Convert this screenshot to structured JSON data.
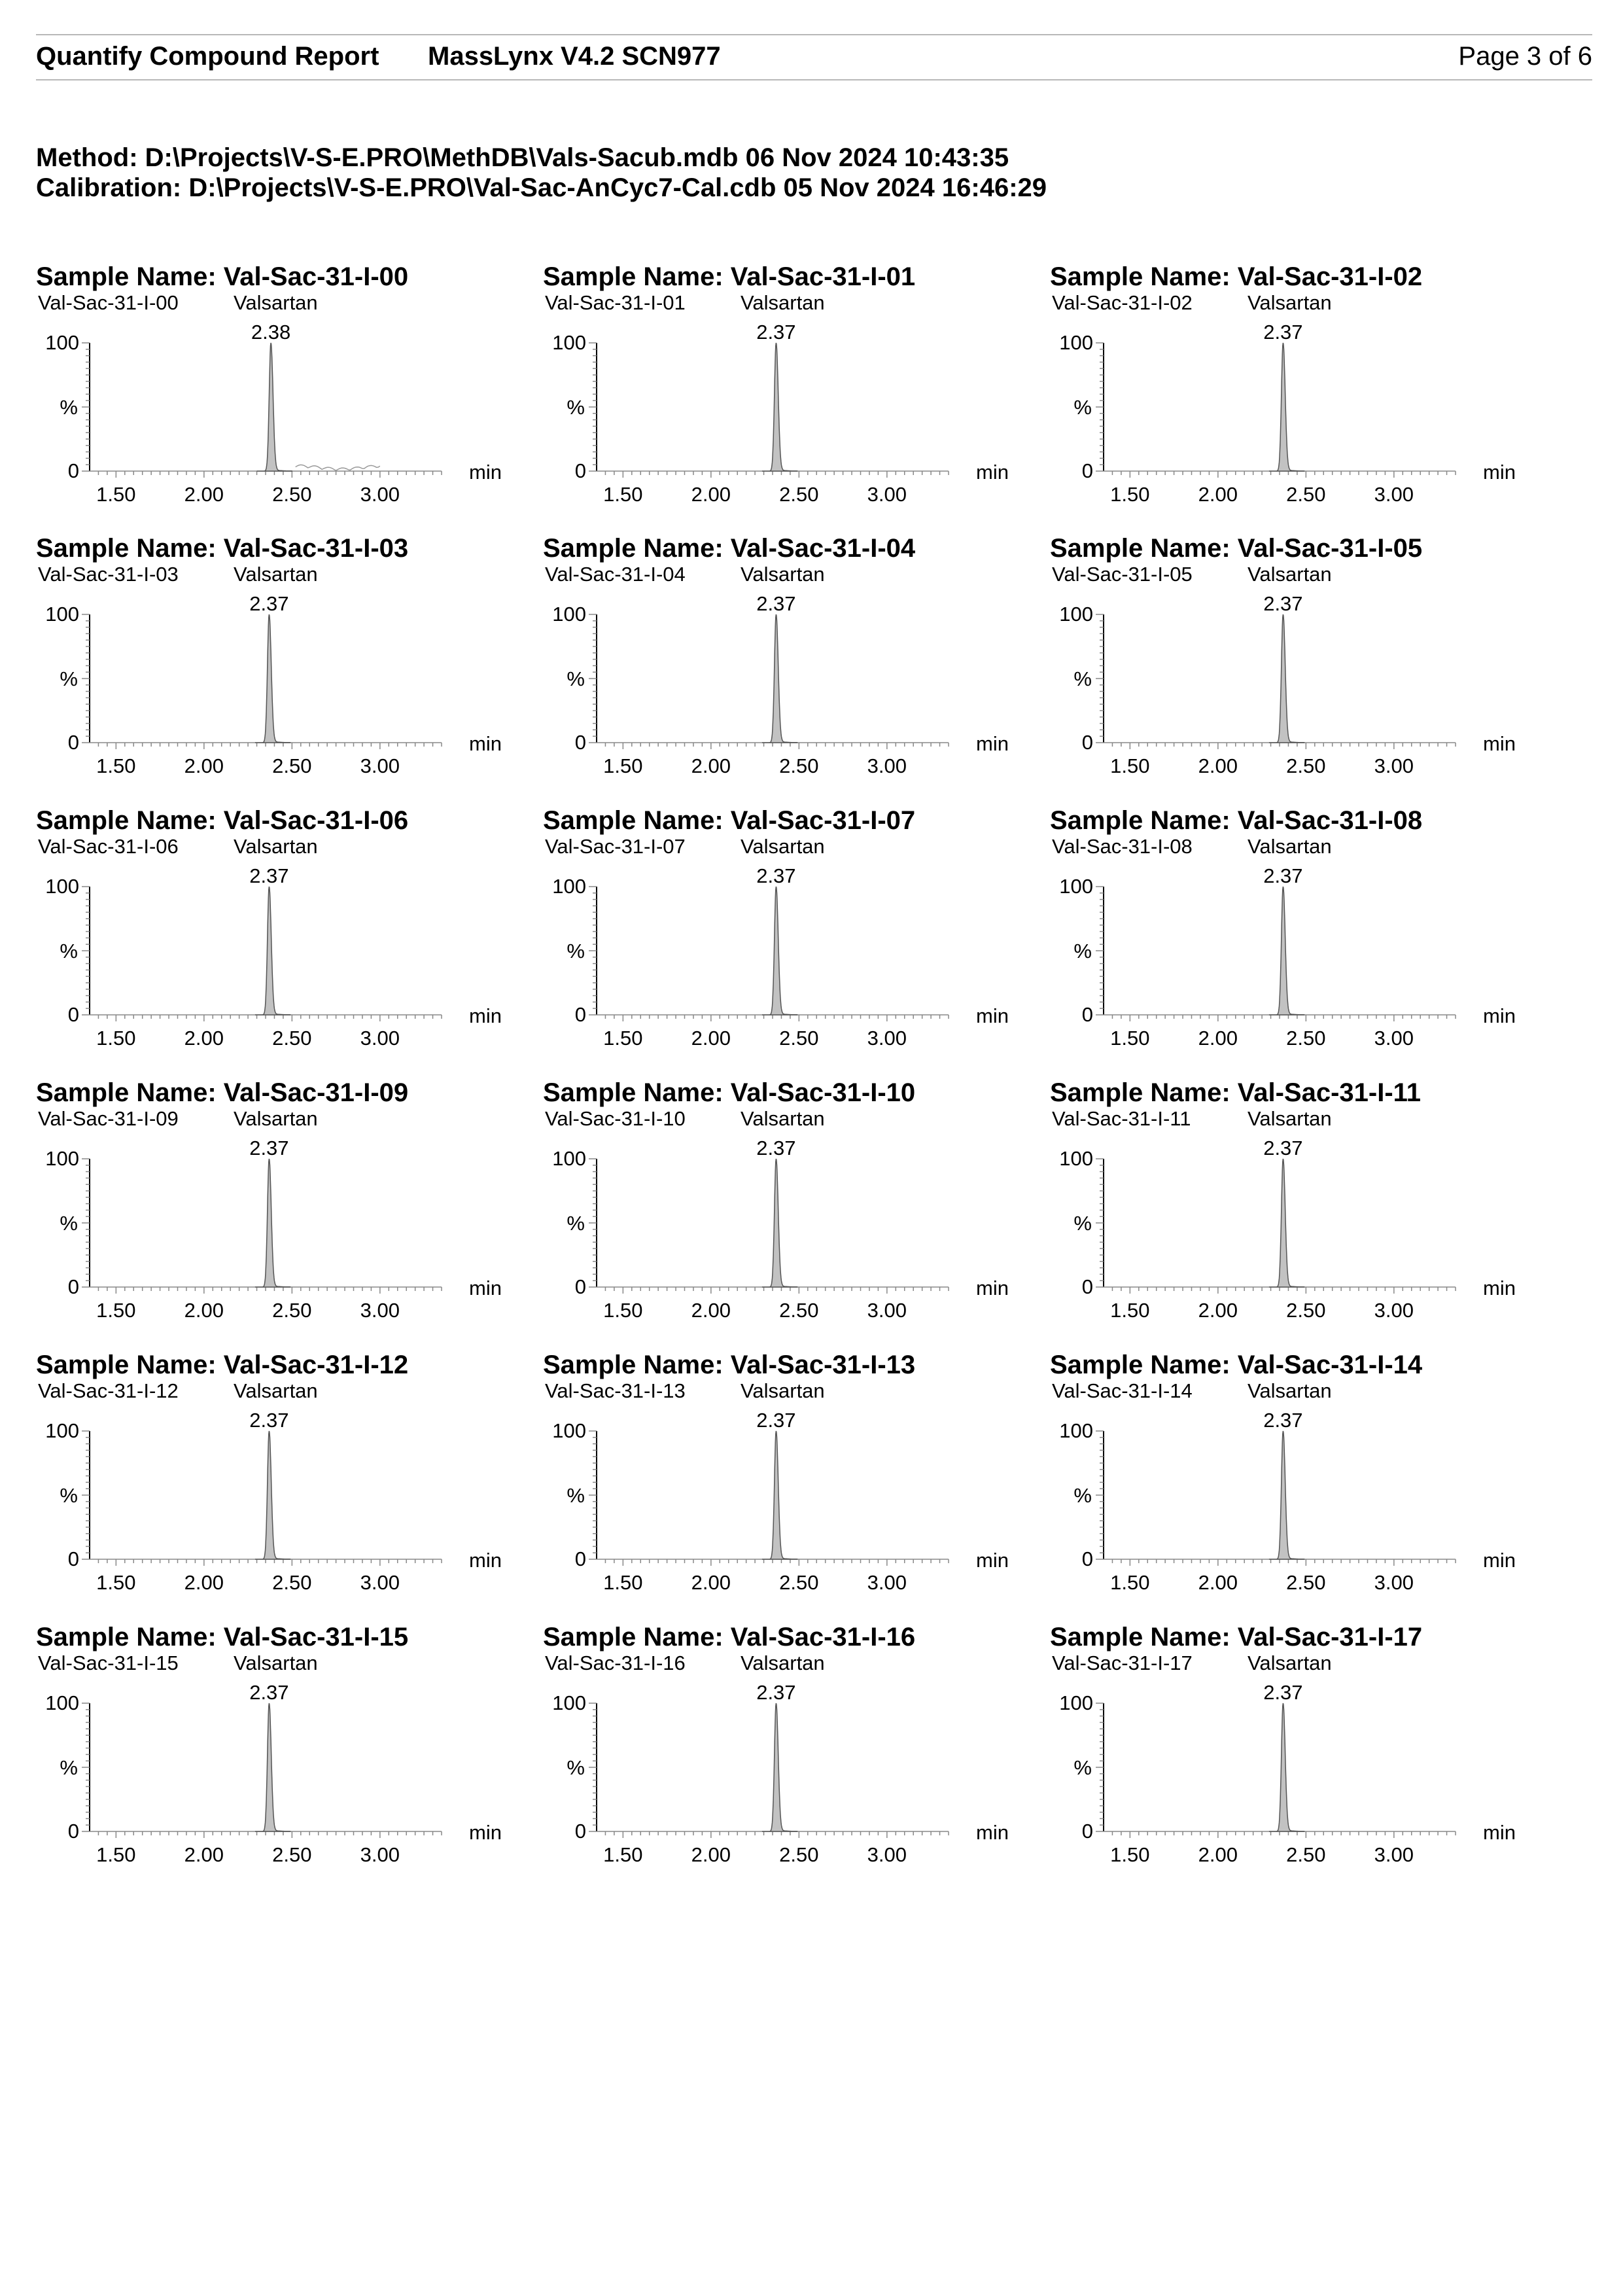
{
  "header": {
    "report_title": "Quantify Compound Report",
    "software": "MassLynx V4.2 SCN977",
    "page": "Page 3 of 6"
  },
  "method": {
    "method_line": "Method: D:\\Projects\\V-S-E.PRO\\MethDB\\Vals-Sacub.mdb 06 Nov 2024 10:43:35",
    "calibration_line": "Calibration: D:\\Projects\\V-S-E.PRO\\Val-Sac-AnCyc7-Cal.cdb 05 Nov 2024 16:46:29"
  },
  "axis": {
    "x_ticks": [
      "1.50",
      "2.00",
      "2.50",
      "3.00"
    ],
    "x_unit": "min",
    "y_top": "100",
    "y_mid": "%",
    "y_bottom": "0"
  },
  "chart_data": [
    {
      "type": "line",
      "title": "Sample Name: Val-Sac-31-I-00",
      "trace_label": "Val-Sac-31-I-00",
      "compound": "Valsartan",
      "peak_rt": "2.38",
      "xlim": [
        1.35,
        3.35
      ],
      "ylim": [
        0,
        100
      ],
      "ylabel": "%",
      "xlabel": "min",
      "noise_trace": true
    },
    {
      "type": "line",
      "title": "Sample Name: Val-Sac-31-I-01",
      "trace_label": "Val-Sac-31-I-01",
      "compound": "Valsartan",
      "peak_rt": "2.37",
      "xlim": [
        1.35,
        3.35
      ],
      "ylim": [
        0,
        100
      ],
      "ylabel": "%",
      "xlabel": "min"
    },
    {
      "type": "line",
      "title": "Sample Name: Val-Sac-31-I-02",
      "trace_label": "Val-Sac-31-I-02",
      "compound": "Valsartan",
      "peak_rt": "2.37",
      "xlim": [
        1.35,
        3.35
      ],
      "ylim": [
        0,
        100
      ],
      "ylabel": "%",
      "xlabel": "min"
    },
    {
      "type": "line",
      "title": "Sample Name: Val-Sac-31-I-03",
      "trace_label": "Val-Sac-31-I-03",
      "compound": "Valsartan",
      "peak_rt": "2.37",
      "xlim": [
        1.35,
        3.35
      ],
      "ylim": [
        0,
        100
      ],
      "ylabel": "%",
      "xlabel": "min"
    },
    {
      "type": "line",
      "title": "Sample Name: Val-Sac-31-I-04",
      "trace_label": "Val-Sac-31-I-04",
      "compound": "Valsartan",
      "peak_rt": "2.37",
      "xlim": [
        1.35,
        3.35
      ],
      "ylim": [
        0,
        100
      ],
      "ylabel": "%",
      "xlabel": "min"
    },
    {
      "type": "line",
      "title": "Sample Name: Val-Sac-31-I-05",
      "trace_label": "Val-Sac-31-I-05",
      "compound": "Valsartan",
      "peak_rt": "2.37",
      "xlim": [
        1.35,
        3.35
      ],
      "ylim": [
        0,
        100
      ],
      "ylabel": "%",
      "xlabel": "min"
    },
    {
      "type": "line",
      "title": "Sample Name: Val-Sac-31-I-06",
      "trace_label": "Val-Sac-31-I-06",
      "compound": "Valsartan",
      "peak_rt": "2.37",
      "xlim": [
        1.35,
        3.35
      ],
      "ylim": [
        0,
        100
      ],
      "ylabel": "%",
      "xlabel": "min"
    },
    {
      "type": "line",
      "title": "Sample Name: Val-Sac-31-I-07",
      "trace_label": "Val-Sac-31-I-07",
      "compound": "Valsartan",
      "peak_rt": "2.37",
      "xlim": [
        1.35,
        3.35
      ],
      "ylim": [
        0,
        100
      ],
      "ylabel": "%",
      "xlabel": "min"
    },
    {
      "type": "line",
      "title": "Sample Name: Val-Sac-31-I-08",
      "trace_label": "Val-Sac-31-I-08",
      "compound": "Valsartan",
      "peak_rt": "2.37",
      "xlim": [
        1.35,
        3.35
      ],
      "ylim": [
        0,
        100
      ],
      "ylabel": "%",
      "xlabel": "min"
    },
    {
      "type": "line",
      "title": "Sample Name: Val-Sac-31-I-09",
      "trace_label": "Val-Sac-31-I-09",
      "compound": "Valsartan",
      "peak_rt": "2.37",
      "xlim": [
        1.35,
        3.35
      ],
      "ylim": [
        0,
        100
      ],
      "ylabel": "%",
      "xlabel": "min"
    },
    {
      "type": "line",
      "title": "Sample Name: Val-Sac-31-I-10",
      "trace_label": "Val-Sac-31-I-10",
      "compound": "Valsartan",
      "peak_rt": "2.37",
      "xlim": [
        1.35,
        3.35
      ],
      "ylim": [
        0,
        100
      ],
      "ylabel": "%",
      "xlabel": "min"
    },
    {
      "type": "line",
      "title": "Sample Name: Val-Sac-31-I-11",
      "trace_label": "Val-Sac-31-I-11",
      "compound": "Valsartan",
      "peak_rt": "2.37",
      "xlim": [
        1.35,
        3.35
      ],
      "ylim": [
        0,
        100
      ],
      "ylabel": "%",
      "xlabel": "min"
    },
    {
      "type": "line",
      "title": "Sample Name: Val-Sac-31-I-12",
      "trace_label": "Val-Sac-31-I-12",
      "compound": "Valsartan",
      "peak_rt": "2.37",
      "xlim": [
        1.35,
        3.35
      ],
      "ylim": [
        0,
        100
      ],
      "ylabel": "%",
      "xlabel": "min"
    },
    {
      "type": "line",
      "title": "Sample Name: Val-Sac-31-I-13",
      "trace_label": "Val-Sac-31-I-13",
      "compound": "Valsartan",
      "peak_rt": "2.37",
      "xlim": [
        1.35,
        3.35
      ],
      "ylim": [
        0,
        100
      ],
      "ylabel": "%",
      "xlabel": "min"
    },
    {
      "type": "line",
      "title": "Sample Name: Val-Sac-31-I-14",
      "trace_label": "Val-Sac-31-I-14",
      "compound": "Valsartan",
      "peak_rt": "2.37",
      "xlim": [
        1.35,
        3.35
      ],
      "ylim": [
        0,
        100
      ],
      "ylabel": "%",
      "xlabel": "min"
    },
    {
      "type": "line",
      "title": "Sample Name: Val-Sac-31-I-15",
      "trace_label": "Val-Sac-31-I-15",
      "compound": "Valsartan",
      "peak_rt": "2.37",
      "xlim": [
        1.35,
        3.35
      ],
      "ylim": [
        0,
        100
      ],
      "ylabel": "%",
      "xlabel": "min"
    },
    {
      "type": "line",
      "title": "Sample Name: Val-Sac-31-I-16",
      "trace_label": "Val-Sac-31-I-16",
      "compound": "Valsartan",
      "peak_rt": "2.37",
      "xlim": [
        1.35,
        3.35
      ],
      "ylim": [
        0,
        100
      ],
      "ylabel": "%",
      "xlabel": "min"
    },
    {
      "type": "line",
      "title": "Sample Name: Val-Sac-31-I-17",
      "trace_label": "Val-Sac-31-I-17",
      "compound": "Valsartan",
      "peak_rt": "2.37",
      "xlim": [
        1.35,
        3.35
      ],
      "ylim": [
        0,
        100
      ],
      "ylabel": "%",
      "xlabel": "min"
    }
  ],
  "colors": {
    "peak_fill": "#c2c2c2",
    "peak_stroke": "#555555",
    "axis": "#000000",
    "rule": "#b8b8b8",
    "noise": "#9a9a9a"
  }
}
